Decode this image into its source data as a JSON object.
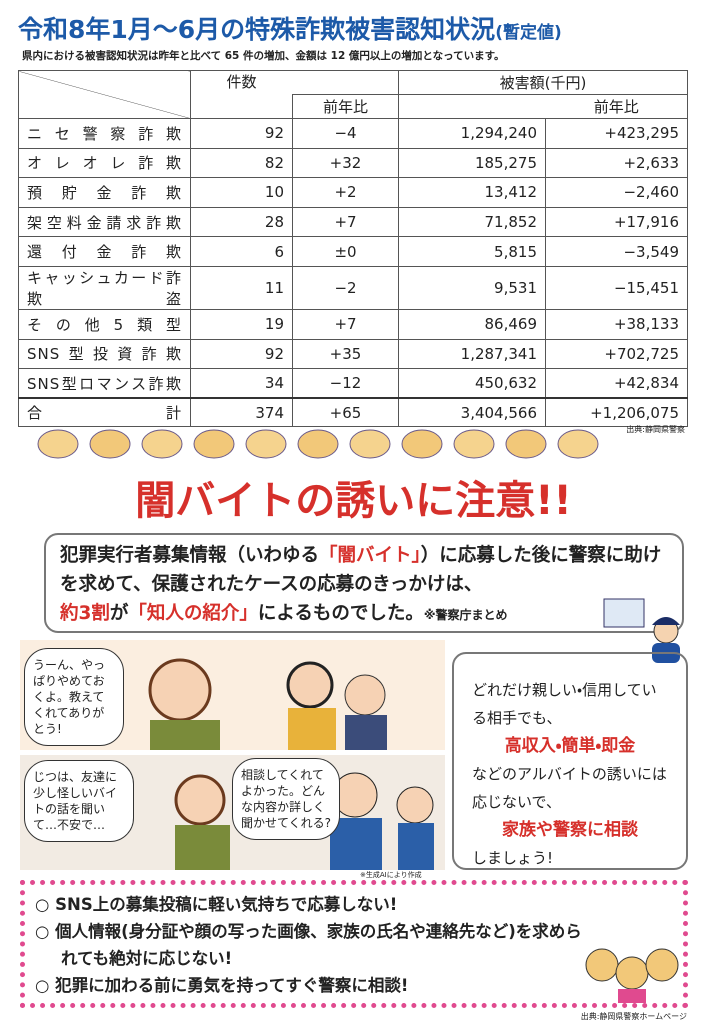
{
  "header": {
    "title": "令和8年1月～6月の特殊詐欺被害認知状況",
    "title_note": "(暫定値)",
    "subtitle": "県内における被害認知状況は昨年と比べて 65 件の増加、金額は 12 億円以上の増加となっています。"
  },
  "table": {
    "headers": [
      "件数",
      "前年比",
      "被害額(千円)",
      "前年比"
    ],
    "rows": [
      [
        "ニセ警察詐欺",
        "92",
        "−4",
        "1,294,240",
        "+423,295"
      ],
      [
        "オレオレ詐欺",
        "82",
        "+32",
        "185,275",
        "+2,633"
      ],
      [
        "預貯金詐欺",
        "10",
        "+2",
        "13,412",
        "−2,460"
      ],
      [
        "架空料金請求詐欺",
        "28",
        "+7",
        "71,852",
        "+17,916"
      ],
      [
        "還付金詐欺",
        "6",
        "±0",
        "5,815",
        "−3,549"
      ],
      [
        "キャッシュカード詐欺盗",
        "11",
        "−2",
        "9,531",
        "−15,451"
      ],
      [
        "その他5類型",
        "19",
        "+7",
        "86,469",
        "+38,133"
      ],
      [
        "SNS型投資詐欺",
        "92",
        "+35",
        "1,287,341",
        "+702,725"
      ],
      [
        "SNS型ロマンス詐欺",
        "34",
        "−12",
        "450,632",
        "+42,834"
      ],
      [
        "合計",
        "374",
        "+65",
        "3,404,566",
        "+1,206,075"
      ]
    ],
    "source": "出典:静岡県警察"
  },
  "warning": {
    "title": "闇バイトの誘いに注意!!",
    "lead": [
      "犯罪実行者募集情報（いわゆる",
      "「闇バイト」",
      "）に応募した後に警察に助けを求めて、保護されたケースの応募のきっかけは、",
      "約3割",
      "が",
      "「知人の紹介」",
      "によるものでした。",
      "※警察庁まとめ"
    ]
  },
  "comic": {
    "bubbles": [
      "うーん、やっぱりやめておくよ。教えてくれてありがとう!",
      "じつは、友達に少し怪しいバイトの話を聞いて…不安で…",
      "相談してくれてよかった。どんな内容か詳しく聞かせてくれる?"
    ],
    "note": "※生成AIにより作成"
  },
  "advice": [
    "どれだけ親しい・信用している相手でも、",
    "高収入・簡単・即金",
    "などのアルバイトの誘いには応じないで、",
    "家族や警察に相談",
    "しましょう!"
  ],
  "checklist": {
    "items": [
      "SNS上の募集投稿に軽い気持ちで応募しない!",
      "個人情報(身分証や顔の写った画像、家族の氏名や連絡先など)を求められても絶対に応じない!",
      "犯罪に加わる前に勇気を持ってすぐ警察に相談!"
    ],
    "source": "出典:静岡県警察ホームページ"
  }
}
